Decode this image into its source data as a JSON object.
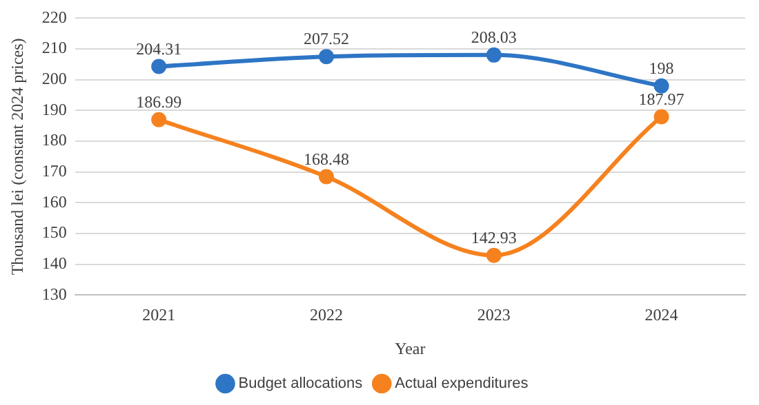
{
  "chart_data": {
    "type": "line",
    "xlabel": "Year",
    "ylabel": "Thousand lei (constant 2024 prices)",
    "categories": [
      "2021",
      "2022",
      "2023",
      "2024"
    ],
    "series": [
      {
        "name": "Budget allocations",
        "color": "#2e75c5",
        "values": [
          204.31,
          207.52,
          208.03,
          198
        ]
      },
      {
        "name": "Actual expenditures",
        "color": "#f5821f",
        "values": [
          186.99,
          168.48,
          142.93,
          187.97
        ]
      }
    ],
    "ylim": [
      130,
      220
    ],
    "yticks": [
      130,
      140,
      150,
      160,
      170,
      180,
      190,
      200,
      210,
      220
    ],
    "grid": "y",
    "legend": "bottom",
    "marker": "circle",
    "line_style": "solid",
    "data_labels": true
  }
}
